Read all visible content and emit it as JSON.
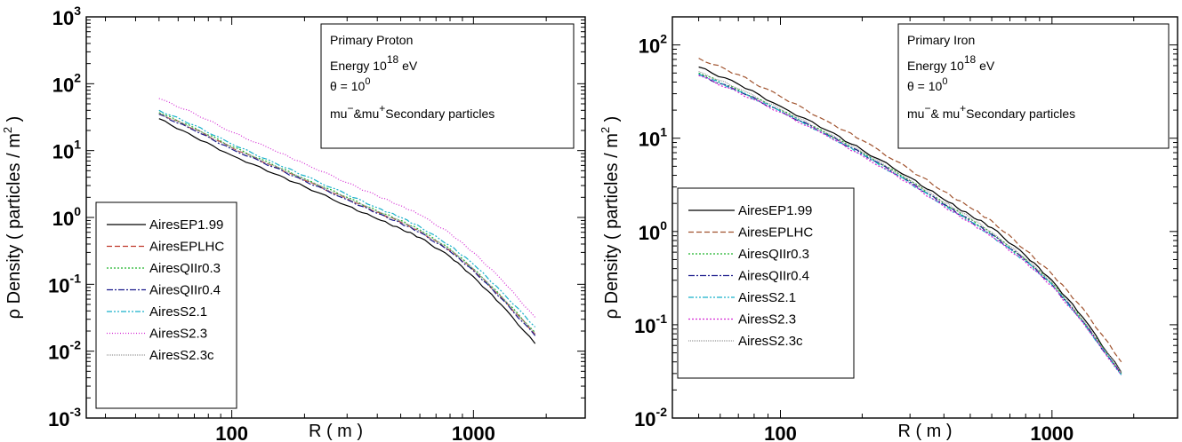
{
  "chart_data": [
    {
      "type": "line",
      "ylabel": "ρ Density ( particles / m",
      "ylabel_sup": "2",
      "ylabel_end": " )",
      "xlabel": "R ( m )",
      "xscale": "log",
      "yscale": "log",
      "xlim": [
        25,
        2900
      ],
      "ylim": [
        0.001,
        1000
      ],
      "x_ticks": [
        {
          "v": 100,
          "label": "100"
        },
        {
          "v": 1000,
          "label": "1000"
        }
      ],
      "y_ticks": [
        {
          "v": 0.001,
          "base": "10",
          "exp": "-3"
        },
        {
          "v": 0.01,
          "base": "10",
          "exp": "-2"
        },
        {
          "v": 0.1,
          "base": "10",
          "exp": "-1"
        },
        {
          "v": 1,
          "base": "10",
          "exp": "0"
        },
        {
          "v": 10,
          "base": "10",
          "exp": "1"
        },
        {
          "v": 100,
          "base": "10",
          "exp": "2"
        },
        {
          "v": 1000,
          "base": "10",
          "exp": "3"
        }
      ],
      "grid": false,
      "info": {
        "line1": "Primary  Proton",
        "energy_label": "Energy  10",
        "energy_exp": "18",
        "energy_unit": " eV",
        "theta_label": "θ = 10",
        "theta_exp": "0",
        "particles_a": "mu",
        "particles_a_sup": "−",
        "particles_b": "&mu",
        "particles_b_sup": "+",
        "particles_c": "Secondary particles"
      },
      "legend_position": "bottom-left",
      "x": [
        50,
        70,
        100,
        150,
        200,
        300,
        400,
        500,
        600,
        800,
        1000,
        1300,
        1800
      ],
      "series": [
        {
          "name": "AiresEP1.99",
          "color": "#000000",
          "dash": "",
          "values": [
            30,
            16,
            8.5,
            4.5,
            2.9,
            1.5,
            0.95,
            0.68,
            0.5,
            0.26,
            0.13,
            0.05,
            0.013
          ]
        },
        {
          "name": "AiresEPLHC",
          "color": "#c0392b",
          "dash": "6,3",
          "values": [
            36,
            21,
            11,
            5.8,
            3.6,
            1.9,
            1.2,
            0.85,
            0.62,
            0.32,
            0.165,
            0.065,
            0.018
          ]
        },
        {
          "name": "AiresQIIr0.3",
          "color": "#1fb32a",
          "dash": "2,2",
          "values": [
            37,
            22,
            11.5,
            6,
            3.8,
            2.0,
            1.25,
            0.9,
            0.65,
            0.34,
            0.17,
            0.067,
            0.019
          ]
        },
        {
          "name": "AiresQIIr0.4",
          "color": "#1a1a8c",
          "dash": "7,2,2,2",
          "values": [
            35,
            20,
            10.5,
            5.6,
            3.5,
            1.85,
            1.15,
            0.82,
            0.6,
            0.31,
            0.16,
            0.062,
            0.017
          ]
        },
        {
          "name": "AiresS2.1",
          "color": "#17b0c9",
          "dash": "6,2,2,2,2,2",
          "values": [
            40,
            24,
            12.5,
            6.6,
            4.2,
            2.2,
            1.4,
            1.0,
            0.73,
            0.38,
            0.2,
            0.08,
            0.023
          ]
        },
        {
          "name": "AiresS2.3",
          "color": "#d42ad4",
          "dash": "1,2",
          "values": [
            60,
            36,
            19,
            10,
            6.4,
            3.3,
            2.1,
            1.5,
            1.1,
            0.58,
            0.3,
            0.12,
            0.032
          ]
        },
        {
          "name": "AiresS2.3c",
          "color": "#999999",
          "dash": "1,1",
          "values": [
            36,
            21,
            11,
            5.9,
            3.7,
            1.95,
            1.22,
            0.87,
            0.63,
            0.33,
            0.17,
            0.066,
            0.018
          ]
        }
      ]
    },
    {
      "type": "line",
      "ylabel": "ρ Density ( particles / m",
      "ylabel_sup": "2",
      "ylabel_end": " )",
      "xlabel": "R ( m )",
      "xscale": "log",
      "yscale": "log",
      "xlim": [
        40,
        2900
      ],
      "ylim": [
        0.01,
        200
      ],
      "x_ticks": [
        {
          "v": 100,
          "label": "100"
        },
        {
          "v": 1000,
          "label": "1000"
        }
      ],
      "y_ticks": [
        {
          "v": 0.01,
          "base": "10",
          "exp": "-2"
        },
        {
          "v": 0.1,
          "base": "10",
          "exp": "-1"
        },
        {
          "v": 1,
          "base": "10",
          "exp": "0"
        },
        {
          "v": 10,
          "base": "10",
          "exp": "1"
        },
        {
          "v": 100,
          "base": "10",
          "exp": "2"
        }
      ],
      "grid": false,
      "info": {
        "line1": "Primary  Iron",
        "energy_label": "Energy  10",
        "energy_exp": "18",
        "energy_unit": " eV",
        "theta_label": "θ = 10",
        "theta_exp": "0",
        "particles_a": "mu",
        "particles_a_sup": "−",
        "particles_b": "& mu",
        "particles_b_sup": "+",
        "particles_c": "Secondary particles"
      },
      "legend_position": "bottom-left",
      "x": [
        50,
        70,
        100,
        150,
        200,
        300,
        400,
        500,
        600,
        800,
        1000,
        1300,
        1800
      ],
      "series": [
        {
          "name": "AiresEP1.99",
          "color": "#000000",
          "dash": "",
          "values": [
            58,
            38,
            22,
            12,
            7.5,
            3.8,
            2.2,
            1.5,
            1.1,
            0.55,
            0.3,
            0.12,
            0.031
          ]
        },
        {
          "name": "AiresEPLHC",
          "color": "#a0522d",
          "dash": "6,3",
          "values": [
            72,
            48,
            28,
            15,
            9.5,
            4.6,
            2.7,
            1.8,
            1.3,
            0.63,
            0.35,
            0.15,
            0.04
          ]
        },
        {
          "name": "AiresQIIr0.3",
          "color": "#1fb32a",
          "dash": "2,2",
          "values": [
            50,
            33,
            20,
            11,
            7.0,
            3.5,
            2.0,
            1.35,
            0.95,
            0.5,
            0.28,
            0.11,
            0.03
          ]
        },
        {
          "name": "AiresQIIr0.4",
          "color": "#1a1a8c",
          "dash": "7,2,2,2",
          "values": [
            48,
            32,
            19.5,
            10.8,
            6.8,
            3.4,
            1.95,
            1.3,
            0.93,
            0.49,
            0.27,
            0.108,
            0.029
          ]
        },
        {
          "name": "AiresS2.1",
          "color": "#17b0c9",
          "dash": "6,2,2,2,2,2",
          "values": [
            49,
            32,
            19.5,
            10.6,
            6.7,
            3.3,
            1.9,
            1.28,
            0.9,
            0.48,
            0.27,
            0.107,
            0.029
          ]
        },
        {
          "name": "AiresS2.3",
          "color": "#d42ad4",
          "dash": "2,2",
          "values": [
            47,
            31,
            19,
            10.4,
            6.5,
            3.25,
            1.85,
            1.25,
            0.88,
            0.47,
            0.26,
            0.105,
            0.029
          ]
        },
        {
          "name": "AiresS2.3c",
          "color": "#999999",
          "dash": "1,1",
          "values": [
            52,
            34,
            20.5,
            11.2,
            7.1,
            3.55,
            2.05,
            1.4,
            0.98,
            0.51,
            0.285,
            0.112,
            0.031
          ]
        }
      ]
    }
  ]
}
